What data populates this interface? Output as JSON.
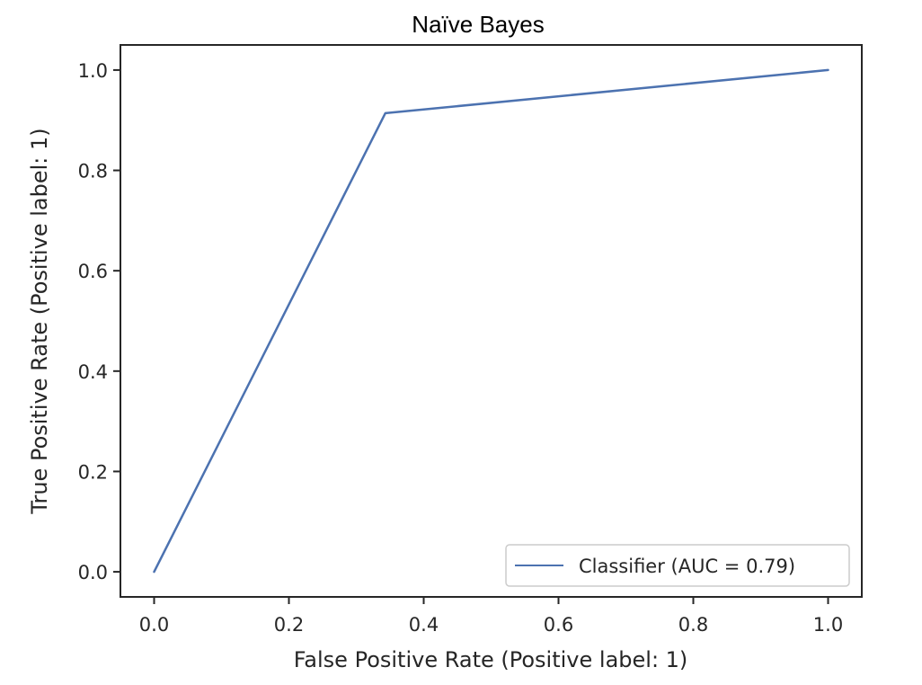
{
  "chart_data": {
    "type": "line",
    "title": "Naïve Bayes",
    "xlabel": "False Positive Rate (Positive label: 1)",
    "ylabel": "True Positive Rate (Positive label: 1)",
    "xlim": [
      -0.05,
      1.05
    ],
    "ylim": [
      -0.05,
      1.05
    ],
    "xticks": [
      "0.0",
      "0.2",
      "0.4",
      "0.6",
      "0.8",
      "1.0"
    ],
    "yticks": [
      "0.0",
      "0.2",
      "0.4",
      "0.6",
      "0.8",
      "1.0"
    ],
    "grid": false,
    "legend_position": "bottom-right",
    "series": [
      {
        "name": "Classifier (AUC = 0.79)",
        "color": "#4c72b0",
        "x": [
          0.0,
          0.343,
          1.0
        ],
        "y": [
          0.0,
          0.914,
          1.0
        ]
      }
    ]
  }
}
